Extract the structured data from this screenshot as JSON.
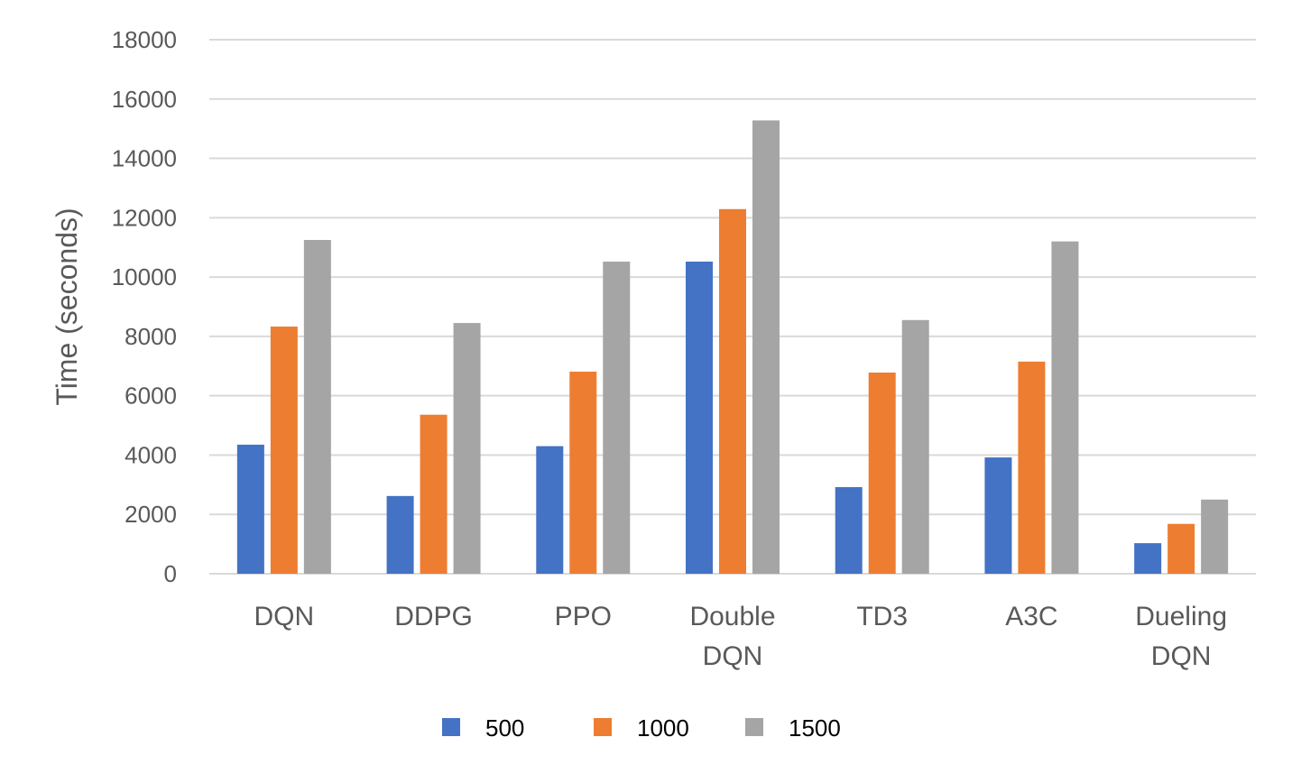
{
  "chart_data": {
    "type": "bar",
    "categories": [
      [
        "DQN"
      ],
      [
        "DDPG"
      ],
      [
        "PPO"
      ],
      [
        "Double",
        "DQN"
      ],
      [
        "TD3"
      ],
      [
        "A3C"
      ],
      [
        "Dueling",
        "DQN"
      ]
    ],
    "series": [
      {
        "name": "500",
        "color": "#4472C4",
        "values": [
          4350,
          2620,
          4300,
          10520,
          2920,
          3920,
          1030
        ]
      },
      {
        "name": "1000",
        "color": "#ED7D31",
        "values": [
          8330,
          5360,
          6810,
          12290,
          6780,
          7150,
          1680
        ]
      },
      {
        "name": "1500",
        "color": "#A5A5A5",
        "values": [
          11250,
          8450,
          10520,
          15280,
          8550,
          11200,
          2500
        ]
      }
    ],
    "ylabel": "Time (seconds)",
    "xlabel": "",
    "ylim": [
      0,
      18000
    ],
    "yticks": [
      0,
      2000,
      4000,
      6000,
      8000,
      10000,
      12000,
      14000,
      16000,
      18000
    ],
    "grid": true,
    "legend_position": "bottom"
  }
}
